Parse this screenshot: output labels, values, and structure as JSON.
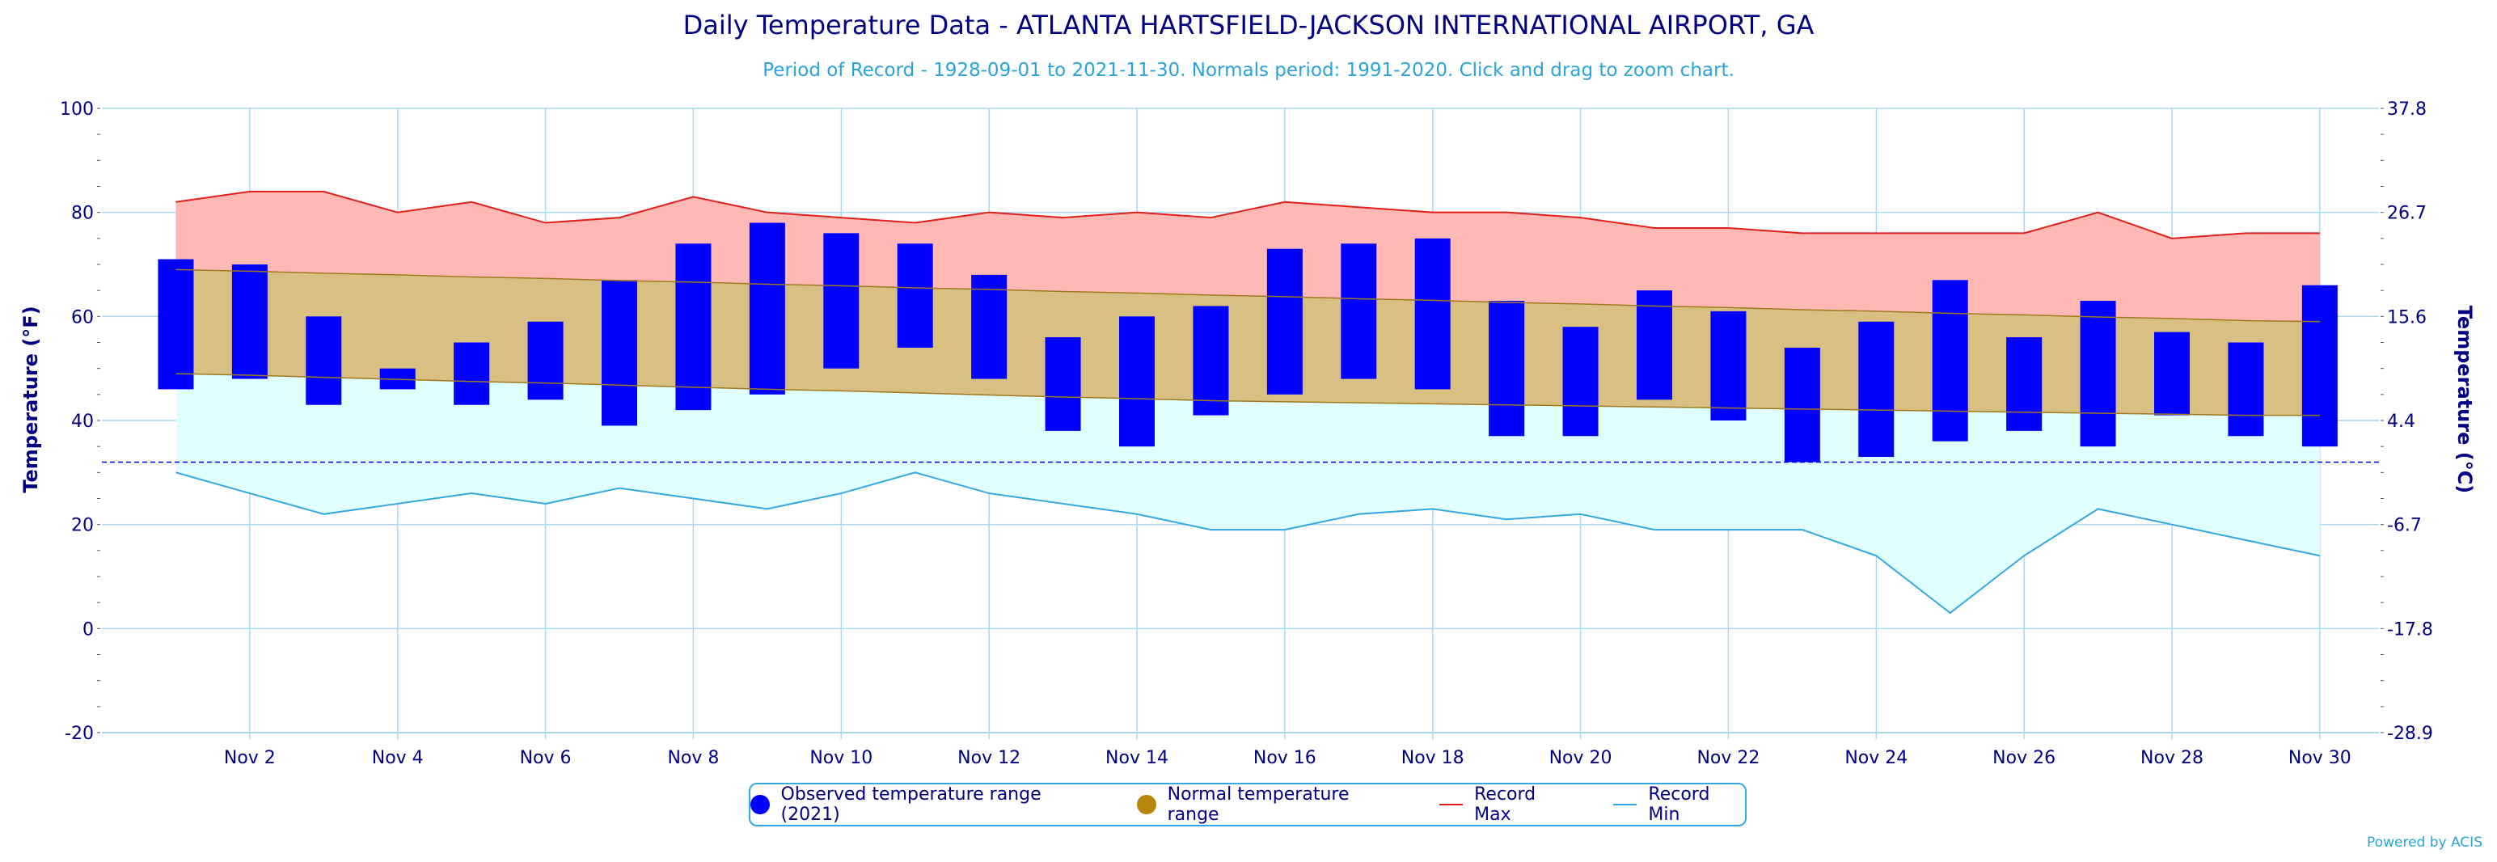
{
  "title": "Daily Temperature Data - ATLANTA HARTSFIELD-JACKSON INTERNATIONAL AIRPORT, GA",
  "subtitle": "Period of Record - 1928-09-01 to 2021-11-30. Normals period: 1991-2020. Click and drag to zoom chart.",
  "credit": "Powered by ACIS",
  "colors": {
    "observed": "#0000ff",
    "normal_fill": "#d9bf82",
    "normal_legend": "#b8860b",
    "record_max_fill": "#ffb8b3",
    "record_max_line": "#e0201a",
    "record_min_fill": "#e0ffff",
    "record_min_line": "#33a7e0",
    "grid": "#a9d8f0",
    "axis_text": "#000080",
    "freezing_line": "#0000ff"
  },
  "legend": {
    "observed": "Observed temperature range (2021)",
    "normal": "Normal temperature range",
    "record_max": "Record Max",
    "record_min": "Record Min"
  },
  "chart_data": {
    "type": "bar",
    "title": "Daily Temperature Data - ATLANTA HARTSFIELD-JACKSON INTERNATIONAL AIRPORT, GA",
    "ylabel": "Temperature (°F)",
    "ylabel_right": "Temperature (°C)",
    "ylim": [
      -20,
      100
    ],
    "y_ticks": [
      -20,
      0,
      20,
      40,
      60,
      80,
      100
    ],
    "y_ticks_right": [
      "-28.9",
      "-17.8",
      "-6.7",
      "4.4",
      "15.6",
      "26.7",
      "37.8"
    ],
    "x_days": [
      1,
      30
    ],
    "x_tick_labels": [
      "Nov 2",
      "Nov 4",
      "Nov 6",
      "Nov 8",
      "Nov 10",
      "Nov 12",
      "Nov 14",
      "Nov 16",
      "Nov 18",
      "Nov 20",
      "Nov 22",
      "Nov 24",
      "Nov 26",
      "Nov 28",
      "Nov 30"
    ],
    "freezing_line": 32,
    "grid": true,
    "legend_position": "bottom-center",
    "days": [
      1,
      2,
      3,
      4,
      5,
      6,
      7,
      8,
      9,
      10,
      11,
      12,
      13,
      14,
      15,
      16,
      17,
      18,
      19,
      20,
      21,
      22,
      23,
      24,
      25,
      26,
      27,
      28,
      29,
      30
    ],
    "observed_max": [
      71,
      70,
      60,
      50,
      55,
      59,
      67,
      74,
      78,
      76,
      74,
      68,
      56,
      60,
      62,
      73,
      74,
      75,
      63,
      58,
      65,
      61,
      54,
      59,
      67,
      56,
      63,
      57,
      55,
      66
    ],
    "observed_min": [
      46,
      48,
      43,
      46,
      43,
      44,
      39,
      42,
      45,
      50,
      54,
      48,
      38,
      35,
      41,
      45,
      48,
      46,
      37,
      37,
      44,
      40,
      32,
      33,
      36,
      38,
      35,
      41,
      37,
      35
    ],
    "normal_max": [
      69,
      68.7,
      68.3,
      68,
      67.6,
      67.3,
      66.9,
      66.6,
      66.2,
      65.9,
      65.5,
      65.2,
      64.8,
      64.5,
      64.1,
      63.8,
      63.4,
      63.1,
      62.7,
      62.4,
      62,
      61.7,
      61.3,
      61,
      60.6,
      60.3,
      59.9,
      59.6,
      59.2,
      59
    ],
    "normal_min": [
      49,
      48.7,
      48.3,
      47.9,
      47.5,
      47.2,
      46.8,
      46.4,
      46,
      45.7,
      45.3,
      44.9,
      44.5,
      44.2,
      43.8,
      43.6,
      43.4,
      43.2,
      43,
      42.8,
      42.6,
      42.4,
      42.2,
      42,
      41.8,
      41.6,
      41.4,
      41.2,
      41,
      41
    ],
    "record_max": [
      82,
      84,
      84,
      80,
      82,
      78,
      79,
      83,
      80,
      79,
      78,
      80,
      79,
      80,
      79,
      82,
      81,
      80,
      80,
      79,
      77,
      77,
      76,
      76,
      76,
      76,
      80,
      75,
      76,
      76
    ],
    "record_min": [
      30,
      26,
      22,
      24,
      26,
      24,
      27,
      25,
      23,
      26,
      30,
      26,
      24,
      22,
      19,
      19,
      22,
      23,
      21,
      22,
      19,
      19,
      19,
      14,
      3,
      14,
      23,
      20,
      17,
      14
    ]
  }
}
